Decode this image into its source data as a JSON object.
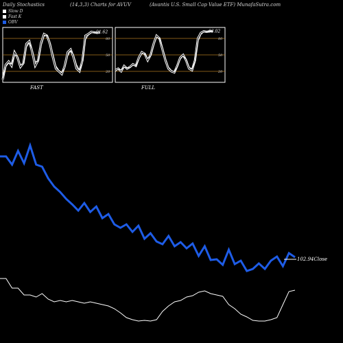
{
  "header": {
    "left": "Daily Stochastics",
    "middle": "(14,3,3) Charts for AVUV",
    "right": "(Avantis U.S. Small Cap Value  ETF) MunafaSutra.com"
  },
  "legend": [
    {
      "label": "Slow  D",
      "color": "#ffffff"
    },
    {
      "label": "Fast K",
      "color": "#ffffff"
    },
    {
      "label": "OBV",
      "color": "#1e5ce6"
    }
  ],
  "colors": {
    "grid": "#b07820",
    "obv": "#1e5ce6",
    "line": "#ffffff",
    "background": "#000000"
  },
  "chart_data": [
    {
      "type": "line",
      "title": "FAST",
      "ylim": [
        0,
        100
      ],
      "yticks": [
        20,
        50,
        80
      ],
      "last_value_label": "91.62",
      "series": [
        {
          "values": [
            5,
            32,
            38,
            30,
            55,
            45,
            28,
            35,
            70,
            75,
            55,
            30,
            40,
            72,
            88,
            85,
            70,
            45,
            25,
            20,
            15,
            30,
            55,
            60,
            45,
            25,
            20,
            40,
            85,
            88,
            92,
            91,
            90,
            91
          ]
        },
        {
          "values": [
            8,
            28,
            35,
            33,
            50,
            48,
            32,
            33,
            64,
            72,
            60,
            38,
            38,
            66,
            84,
            86,
            74,
            52,
            30,
            22,
            18,
            26,
            48,
            58,
            50,
            32,
            22,
            36,
            78,
            86,
            90,
            91,
            91,
            91.62
          ]
        }
      ]
    },
    {
      "type": "line",
      "title": "FULL",
      "ylim": [
        0,
        100
      ],
      "yticks": [
        20,
        50,
        80
      ],
      "last_value_label": "93.02",
      "series": [
        {
          "values": [
            22,
            25,
            20,
            30,
            25,
            28,
            33,
            30,
            45,
            55,
            52,
            40,
            50,
            70,
            85,
            80,
            60,
            40,
            25,
            20,
            18,
            30,
            45,
            50,
            40,
            25,
            22,
            40,
            80,
            90,
            93,
            92,
            93,
            93
          ]
        },
        {
          "values": [
            20,
            24,
            22,
            28,
            26,
            27,
            31,
            30,
            42,
            52,
            52,
            43,
            48,
            66,
            82,
            80,
            64,
            44,
            28,
            22,
            19,
            28,
            42,
            48,
            42,
            28,
            24,
            38,
            74,
            87,
            92,
            92,
            93,
            93.02
          ]
        }
      ]
    },
    {
      "type": "line",
      "title": "OBV",
      "last_value_label": "102.94Close",
      "series": [
        {
          "name": "OBV",
          "values": [
            240,
            240,
            228,
            248,
            230,
            256,
            228,
            225,
            208,
            196,
            188,
            178,
            170,
            161,
            172,
            159,
            167,
            150,
            156,
            141,
            136,
            141,
            130,
            139,
            120,
            128,
            116,
            112,
            124,
            109,
            115,
            106,
            113,
            95,
            109,
            89,
            90,
            82,
            104,
            83,
            88,
            73,
            76,
            84,
            76,
            88,
            94,
            80,
            99,
            93
          ]
        },
        {
          "values": [
            62,
            62,
            48,
            48,
            38,
            38,
            35,
            40,
            32,
            28,
            30,
            28,
            30,
            28,
            26,
            28,
            26,
            24,
            22,
            18,
            12,
            5,
            2,
            0,
            1,
            0,
            2,
            14,
            22,
            28,
            30,
            35,
            37,
            42,
            44,
            40,
            38,
            36,
            24,
            18,
            10,
            6,
            1,
            0,
            0,
            2,
            5,
            24,
            43,
            45
          ]
        }
      ]
    }
  ]
}
